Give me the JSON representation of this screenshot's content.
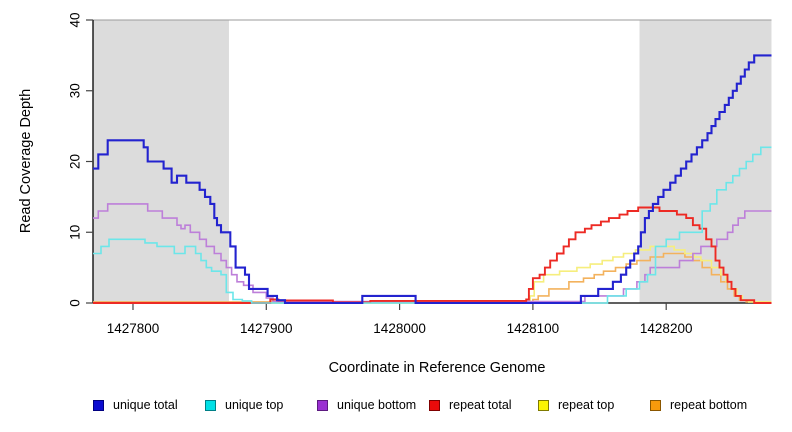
{
  "chart_data": {
    "type": "line",
    "subtype": "step-coverage-plot",
    "title": "",
    "xlabel": "Coordinate in Reference Genome",
    "ylabel": "Read Coverage Depth",
    "xlim": [
      1427770,
      1428279
    ],
    "ylim": [
      0,
      40
    ],
    "x_ticks": [
      1427800,
      1427900,
      1428000,
      1428100,
      1428200
    ],
    "y_ticks": [
      0,
      10,
      20,
      30,
      40
    ],
    "grid": false,
    "legend_position": "bottom",
    "shaded_regions": [
      {
        "x0": 1427770,
        "x1": 1427872,
        "color": "#dcdcdc"
      },
      {
        "x0": 1428180,
        "x1": 1428279,
        "color": "#dcdcdc"
      }
    ],
    "top_border_color": "#9b9b9b",
    "axis_color": "#000000",
    "series": [
      {
        "name": "repeat bottom",
        "color": "#f3b25d",
        "width": 1.6,
        "points": [
          [
            1427770,
            0.15
          ],
          [
            1427912,
            0.1
          ],
          [
            1428100,
            0.5
          ],
          [
            1428104,
            1
          ],
          [
            1428112,
            2
          ],
          [
            1428127,
            3
          ],
          [
            1428138,
            3.5
          ],
          [
            1428146,
            4
          ],
          [
            1428153,
            4.5
          ],
          [
            1428162,
            5
          ],
          [
            1428170,
            5.5
          ],
          [
            1428178,
            6
          ],
          [
            1428188,
            6.5
          ],
          [
            1428198,
            7
          ],
          [
            1428214,
            6.5
          ],
          [
            1428220,
            6
          ],
          [
            1428227,
            5
          ],
          [
            1428234,
            4
          ],
          [
            1428241,
            3
          ],
          [
            1428246,
            2
          ],
          [
            1428251,
            1
          ],
          [
            1428255,
            0.4
          ],
          [
            1428260,
            0.15
          ]
        ]
      },
      {
        "name": "repeat top",
        "color": "#f6ee7d",
        "width": 1.6,
        "points": [
          [
            1427770,
            0
          ],
          [
            1428098,
            1
          ],
          [
            1428101,
            3
          ],
          [
            1428108,
            4
          ],
          [
            1428120,
            4.5
          ],
          [
            1428133,
            5
          ],
          [
            1428143,
            5.5
          ],
          [
            1428152,
            6
          ],
          [
            1428160,
            6.5
          ],
          [
            1428168,
            7
          ],
          [
            1428177,
            7.5
          ],
          [
            1428188,
            8
          ],
          [
            1428206,
            7.5
          ],
          [
            1428214,
            7
          ],
          [
            1428221,
            6.5
          ],
          [
            1428226,
            6
          ],
          [
            1428234,
            5
          ],
          [
            1428241,
            4
          ],
          [
            1428245,
            3
          ],
          [
            1428249,
            2
          ],
          [
            1428253,
            1
          ],
          [
            1428257,
            0.4
          ],
          [
            1428262,
            0.15
          ]
        ]
      },
      {
        "name": "unique bottom",
        "color": "#bd7fd9",
        "width": 1.6,
        "points": [
          [
            1427770,
            12
          ],
          [
            1427774,
            13
          ],
          [
            1427781,
            14
          ],
          [
            1427811,
            13
          ],
          [
            1427822,
            12
          ],
          [
            1427833,
            11
          ],
          [
            1427836,
            10.5
          ],
          [
            1427839,
            11
          ],
          [
            1427843,
            10
          ],
          [
            1427850,
            9
          ],
          [
            1427855,
            8
          ],
          [
            1427861,
            7
          ],
          [
            1427866,
            6
          ],
          [
            1427870,
            5
          ],
          [
            1427874,
            4
          ],
          [
            1427878,
            3
          ],
          [
            1427883,
            2.5
          ],
          [
            1427890,
            1.5
          ],
          [
            1427900,
            0.7
          ],
          [
            1427905,
            0.2
          ],
          [
            1428139,
            1
          ],
          [
            1428168,
            2
          ],
          [
            1428178,
            3
          ],
          [
            1428184,
            4
          ],
          [
            1428188,
            5
          ],
          [
            1428210,
            6
          ],
          [
            1428220,
            7
          ],
          [
            1428226,
            8
          ],
          [
            1428238,
            9
          ],
          [
            1428246,
            10
          ],
          [
            1428250,
            11
          ],
          [
            1428254,
            12
          ],
          [
            1428259,
            13
          ]
        ]
      },
      {
        "name": "repeat total",
        "color": "#ed2a24",
        "width": 1.9,
        "points": [
          [
            1427770,
            0
          ],
          [
            1427903,
            0.5
          ],
          [
            1427909,
            0.35
          ],
          [
            1427950,
            0.1
          ],
          [
            1427978,
            0.3
          ],
          [
            1428095,
            0.5
          ],
          [
            1428097,
            2
          ],
          [
            1428100,
            3.5
          ],
          [
            1428105,
            4
          ],
          [
            1428109,
            5
          ],
          [
            1428113,
            6
          ],
          [
            1428118,
            7
          ],
          [
            1428123,
            8
          ],
          [
            1428127,
            9
          ],
          [
            1428132,
            10
          ],
          [
            1428139,
            10.5
          ],
          [
            1428144,
            11
          ],
          [
            1428151,
            11.5
          ],
          [
            1428157,
            12
          ],
          [
            1428165,
            12.5
          ],
          [
            1428171,
            13
          ],
          [
            1428179,
            13.5
          ],
          [
            1428195,
            13
          ],
          [
            1428208,
            12.5
          ],
          [
            1428215,
            12
          ],
          [
            1428220,
            11
          ],
          [
            1428225,
            10.5
          ],
          [
            1428230,
            9
          ],
          [
            1428234,
            8
          ],
          [
            1428237,
            6
          ],
          [
            1428240,
            5
          ],
          [
            1428243,
            4
          ],
          [
            1428246,
            3
          ],
          [
            1428249,
            2
          ],
          [
            1428252,
            1
          ],
          [
            1428256,
            0.4
          ],
          [
            1428266,
            0
          ]
        ]
      },
      {
        "name": "unique top",
        "color": "#6ce6e9",
        "width": 1.6,
        "points": [
          [
            1427770,
            7
          ],
          [
            1427776,
            8
          ],
          [
            1427782,
            9
          ],
          [
            1427809,
            8.5
          ],
          [
            1427818,
            8
          ],
          [
            1427831,
            7
          ],
          [
            1427839,
            8
          ],
          [
            1427847,
            7
          ],
          [
            1427851,
            6
          ],
          [
            1427855,
            5
          ],
          [
            1427859,
            4.5
          ],
          [
            1427866,
            4
          ],
          [
            1427870,
            1.5
          ],
          [
            1427875,
            0.5
          ],
          [
            1427882,
            0.3
          ],
          [
            1427889,
            0
          ],
          [
            1428156,
            1
          ],
          [
            1428170,
            2
          ],
          [
            1428180,
            3
          ],
          [
            1428186,
            4
          ],
          [
            1428192,
            8
          ],
          [
            1428200,
            9
          ],
          [
            1428210,
            10
          ],
          [
            1428227,
            13
          ],
          [
            1428233,
            14
          ],
          [
            1428238,
            16
          ],
          [
            1428245,
            17
          ],
          [
            1428250,
            18
          ],
          [
            1428255,
            19
          ],
          [
            1428260,
            20
          ],
          [
            1428265,
            21
          ],
          [
            1428271,
            22
          ]
        ]
      },
      {
        "name": "unique total",
        "color": "#2323cf",
        "width": 2.1,
        "points": [
          [
            1427770,
            19
          ],
          [
            1427774,
            21
          ],
          [
            1427781,
            23
          ],
          [
            1427808,
            22
          ],
          [
            1427811,
            20
          ],
          [
            1427823,
            19
          ],
          [
            1427829,
            17
          ],
          [
            1427833,
            18
          ],
          [
            1427840,
            17
          ],
          [
            1427850,
            16
          ],
          [
            1427854,
            15
          ],
          [
            1427858,
            14
          ],
          [
            1427861,
            12
          ],
          [
            1427863,
            11
          ],
          [
            1427866,
            10
          ],
          [
            1427873,
            8
          ],
          [
            1427877,
            5
          ],
          [
            1427884,
            4
          ],
          [
            1427887,
            2
          ],
          [
            1427901,
            1
          ],
          [
            1427908,
            0.4
          ],
          [
            1427914,
            0
          ],
          [
            1427972,
            1
          ],
          [
            1428012,
            0
          ],
          [
            1428136,
            1
          ],
          [
            1428149,
            2
          ],
          [
            1428160,
            3
          ],
          [
            1428166,
            4
          ],
          [
            1428170,
            5
          ],
          [
            1428173,
            6
          ],
          [
            1428176,
            7
          ],
          [
            1428179,
            8
          ],
          [
            1428181,
            10
          ],
          [
            1428184,
            12
          ],
          [
            1428187,
            13
          ],
          [
            1428190,
            14
          ],
          [
            1428194,
            15
          ],
          [
            1428198,
            16
          ],
          [
            1428203,
            17
          ],
          [
            1428207,
            18
          ],
          [
            1428211,
            19
          ],
          [
            1428215,
            20
          ],
          [
            1428219,
            21
          ],
          [
            1428223,
            22
          ],
          [
            1428227,
            23
          ],
          [
            1428231,
            24
          ],
          [
            1428234,
            25
          ],
          [
            1428237,
            26
          ],
          [
            1428240,
            27
          ],
          [
            1428244,
            28
          ],
          [
            1428247,
            29
          ],
          [
            1428250,
            30
          ],
          [
            1428253,
            31
          ],
          [
            1428256,
            32
          ],
          [
            1428259,
            33
          ],
          [
            1428262,
            34
          ],
          [
            1428266,
            35
          ]
        ]
      }
    ]
  },
  "legend": {
    "items": [
      {
        "label": "unique total",
        "fill": "#0c0cd1",
        "border": "#000080"
      },
      {
        "label": "unique top",
        "fill": "#00e0e6",
        "border": "#007f86"
      },
      {
        "label": "unique bottom",
        "fill": "#9a2fd2",
        "border": "#5c1a80"
      },
      {
        "label": "repeat total",
        "fill": "#ea0b0b",
        "border": "#7f0000"
      },
      {
        "label": "repeat top",
        "fill": "#fbf402",
        "border": "#7f7a00"
      },
      {
        "label": "repeat bottom",
        "fill": "#f79a0c",
        "border": "#8a5600"
      }
    ]
  }
}
